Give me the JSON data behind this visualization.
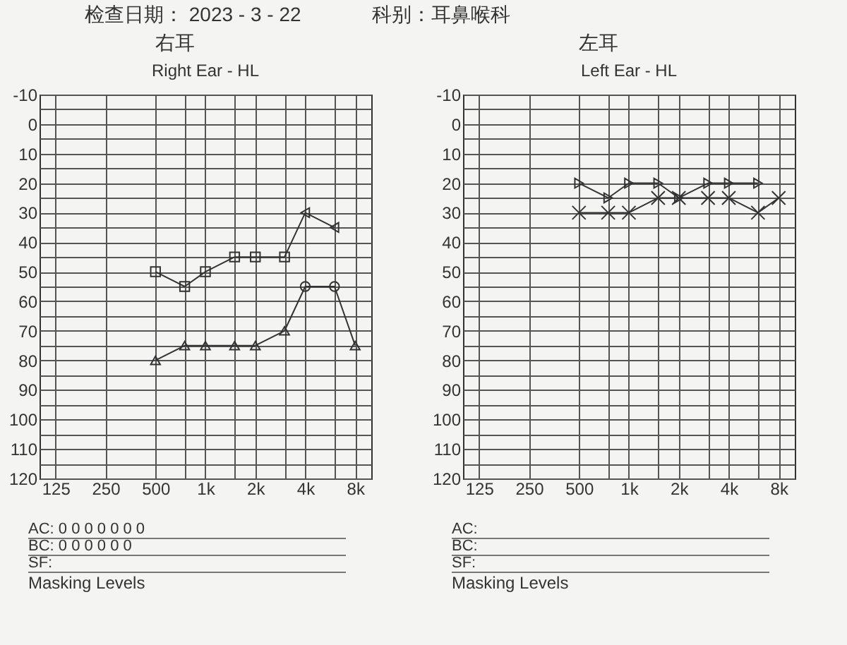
{
  "chart_data": [
    {
      "type": "line",
      "title": "Right Ear - HL",
      "subtitle": "右耳",
      "log": "x",
      "grid": true,
      "xlim": [
        100,
        10000
      ],
      "ylim": [
        120,
        -10
      ],
      "xticks": [
        125,
        250,
        500,
        {
          "value": 750,
          "label": null
        },
        {
          "value": 1000,
          "label": "1k"
        },
        {
          "value": 1500,
          "label": null
        },
        {
          "value": 2000,
          "label": "2k"
        },
        {
          "value": 3000,
          "label": null
        },
        {
          "value": 4000,
          "label": "4k"
        },
        {
          "value": 6000,
          "label": null
        },
        {
          "value": 8000,
          "label": "8k"
        }
      ],
      "yticks": [
        -10,
        {
          "value": -5,
          "label": null
        },
        0,
        {
          "value": 5,
          "label": null
        },
        10,
        {
          "value": 15,
          "label": null
        },
        20,
        {
          "value": 25,
          "label": null
        },
        30,
        {
          "value": 35,
          "label": null
        },
        40,
        {
          "value": 45,
          "label": null
        },
        50,
        {
          "value": 55,
          "label": null
        },
        60,
        {
          "value": 65,
          "label": null
        },
        70,
        {
          "value": 75,
          "label": null
        },
        80,
        {
          "value": 85,
          "label": null
        },
        90,
        {
          "value": 95,
          "label": null
        },
        100,
        {
          "value": 105,
          "label": null
        },
        110,
        {
          "value": 115,
          "label": null
        },
        120
      ],
      "annotations": [
        "检查日期：  2023 - 3  - 22",
        "科别：耳鼻喉科",
        "AC: 0 0 0 0 0 0 0",
        "BC: 0 0 0 0 0 0",
        "SF:",
        "Masking Levels"
      ],
      "series": [
        {
          "marker": "none",
          "color": "#333333",
          "x": [
            500,
            750,
            1000,
            1500,
            2000,
            3000,
            4000,
            6000,
            8000
          ],
          "values": [
            80,
            75,
            75,
            75,
            75,
            70,
            55,
            55,
            75
          ]
        },
        {
          "type": "scatter",
          "marker": "triangle",
          "color": "#333333",
          "x": [
            500,
            750,
            1000,
            1500,
            2000,
            3000,
            8000
          ],
          "values": [
            80,
            75,
            75,
            75,
            75,
            70,
            75
          ]
        },
        {
          "type": "scatter",
          "marker": "circle",
          "color": "#333333",
          "x": [
            4000,
            6000
          ],
          "values": [
            55,
            55
          ]
        },
        {
          "marker": "none",
          "color": "#333333",
          "x": [
            500,
            750,
            1000,
            1500,
            2000,
            3000,
            4000,
            6000
          ],
          "values": [
            50,
            55,
            50,
            45,
            45,
            45,
            30,
            35
          ]
        },
        {
          "type": "scatter",
          "marker": "square",
          "color": "#333333",
          "x": [
            500,
            750,
            1000,
            1500,
            2000,
            3000
          ],
          "values": [
            50,
            55,
            50,
            45,
            45,
            45
          ]
        },
        {
          "type": "scatter",
          "marker": "triangle-left",
          "color": "#333333",
          "x": [
            4000,
            6000
          ],
          "values": [
            30,
            35
          ]
        }
      ]
    },
    {
      "type": "line",
      "title": "Left Ear - HL",
      "subtitle": "左耳",
      "log": "x",
      "grid": true,
      "xlim": [
        100,
        10000
      ],
      "ylim": [
        120,
        -10
      ],
      "xticks": [
        125,
        250,
        500,
        {
          "value": 750,
          "label": null
        },
        {
          "value": 1000,
          "label": "1k"
        },
        {
          "value": 1500,
          "label": null
        },
        {
          "value": 2000,
          "label": "2k"
        },
        {
          "value": 3000,
          "label": null
        },
        {
          "value": 4000,
          "label": "4k"
        },
        {
          "value": 6000,
          "label": null
        },
        {
          "value": 8000,
          "label": "8k"
        }
      ],
      "yticks": [
        -10,
        {
          "value": -5,
          "label": null
        },
        0,
        {
          "value": 5,
          "label": null
        },
        10,
        {
          "value": 15,
          "label": null
        },
        20,
        {
          "value": 25,
          "label": null
        },
        30,
        {
          "value": 35,
          "label": null
        },
        40,
        {
          "value": 45,
          "label": null
        },
        50,
        {
          "value": 55,
          "label": null
        },
        60,
        {
          "value": 65,
          "label": null
        },
        70,
        {
          "value": 75,
          "label": null
        },
        80,
        {
          "value": 85,
          "label": null
        },
        90,
        {
          "value": 95,
          "label": null
        },
        100,
        {
          "value": 105,
          "label": null
        },
        110,
        {
          "value": 115,
          "label": null
        },
        120
      ],
      "annotations": [
        "AC:",
        "BC:",
        "SF:",
        "Masking Levels"
      ],
      "series": [
        {
          "marker": "cross",
          "color": "#333333",
          "x": [
            500,
            750,
            1000,
            1500,
            2000,
            3000,
            4000,
            6000,
            8000
          ],
          "values": [
            30,
            30,
            30,
            25,
            25,
            25,
            25,
            30,
            25
          ]
        },
        {
          "marker": "triangle-right",
          "color": "#333333",
          "x": [
            500,
            750,
            1000,
            1500,
            2000,
            3000,
            4000,
            6000
          ],
          "values": [
            20,
            25,
            20,
            20,
            25,
            20,
            20,
            20
          ]
        }
      ]
    }
  ]
}
